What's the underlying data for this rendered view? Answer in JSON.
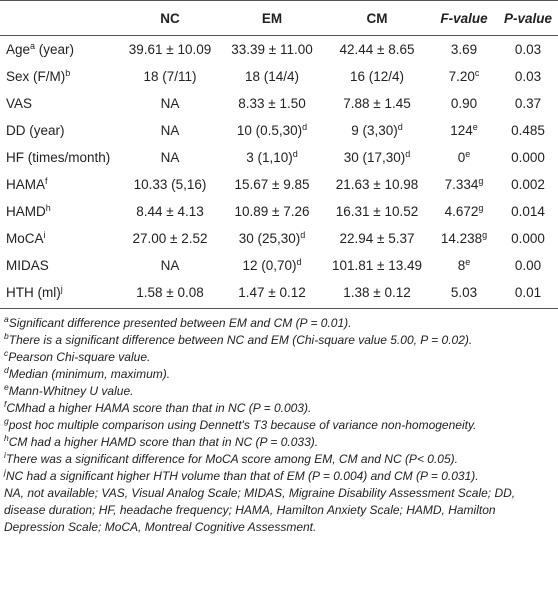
{
  "table": {
    "columns": [
      "",
      "NC",
      "EM",
      "CM",
      "F-value",
      "P-value"
    ],
    "rows": [
      {
        "label": "Age",
        "label_sup": "a",
        "label_suffix": " (year)",
        "cells": [
          {
            "v": "39.61 ± 10.09"
          },
          {
            "v": "33.39 ± 11.00"
          },
          {
            "v": "42.44 ± 8.65"
          },
          {
            "v": "3.69"
          },
          {
            "v": "0.03"
          }
        ]
      },
      {
        "label": "Sex (F/M)",
        "label_sup": "b",
        "label_suffix": "",
        "cells": [
          {
            "v": "18 (7/11)"
          },
          {
            "v": "18 (14/4)"
          },
          {
            "v": "16 (12/4)"
          },
          {
            "v": "7.20",
            "sup": "c"
          },
          {
            "v": "0.03"
          }
        ]
      },
      {
        "label": "VAS",
        "label_sup": "",
        "label_suffix": "",
        "cells": [
          {
            "v": "NA"
          },
          {
            "v": "8.33 ± 1.50"
          },
          {
            "v": "7.88 ± 1.45"
          },
          {
            "v": "0.90"
          },
          {
            "v": "0.37"
          }
        ]
      },
      {
        "label": "DD (year)",
        "label_sup": "",
        "label_suffix": "",
        "cells": [
          {
            "v": "NA"
          },
          {
            "v": "10 (0.5,30)",
            "sup": "d"
          },
          {
            "v": "9 (3,30)",
            "sup": "d"
          },
          {
            "v": "124",
            "sup": "e"
          },
          {
            "v": "0.485"
          }
        ]
      },
      {
        "label": "HF (times/month)",
        "label_sup": "",
        "label_suffix": "",
        "cells": [
          {
            "v": "NA"
          },
          {
            "v": "3 (1,10)",
            "sup": "d"
          },
          {
            "v": "30 (17,30)",
            "sup": "d"
          },
          {
            "v": "0",
            "sup": "e"
          },
          {
            "v": "0.000"
          }
        ]
      },
      {
        "label": "HAMA",
        "label_sup": "f",
        "label_suffix": "",
        "cells": [
          {
            "v": "10.33 (5,16)"
          },
          {
            "v": "15.67 ± 9.85"
          },
          {
            "v": "21.63 ± 10.98"
          },
          {
            "v": "7.334",
            "sup": "g"
          },
          {
            "v": "0.002"
          }
        ]
      },
      {
        "label": "HAMD",
        "label_sup": "h",
        "label_suffix": "",
        "cells": [
          {
            "v": "8.44 ± 4.13"
          },
          {
            "v": "10.89 ± 7.26"
          },
          {
            "v": "16.31 ± 10.52"
          },
          {
            "v": "4.672",
            "sup": "g"
          },
          {
            "v": "0.014"
          }
        ]
      },
      {
        "label": "MoCA",
        "label_sup": "i",
        "label_suffix": "",
        "cells": [
          {
            "v": "27.00 ± 2.52"
          },
          {
            "v": "30 (25,30)",
            "sup": "d"
          },
          {
            "v": "22.94 ± 5.37"
          },
          {
            "v": "14.238",
            "sup": "g"
          },
          {
            "v": "0.000"
          }
        ]
      },
      {
        "label": "MIDAS",
        "label_sup": "",
        "label_suffix": "",
        "cells": [
          {
            "v": "NA"
          },
          {
            "v": "12 (0,70)",
            "sup": "d"
          },
          {
            "v": "101.81 ± 13.49"
          },
          {
            "v": "8",
            "sup": "e"
          },
          {
            "v": "0.00"
          }
        ]
      },
      {
        "label": "HTH (ml)",
        "label_sup": "j",
        "label_suffix": "",
        "cells": [
          {
            "v": "1.58 ± 0.08"
          },
          {
            "v": "1.47 ± 0.12"
          },
          {
            "v": "1.38 ± 0.12"
          },
          {
            "v": "5.03"
          },
          {
            "v": "0.01"
          }
        ]
      }
    ]
  },
  "notes": [
    {
      "sup": "a",
      "text": "Significant difference presented between EM and CM (P = 0.01)."
    },
    {
      "sup": "b",
      "text": "There is a significant difference between NC and EM (Chi-square value 5.00, P = 0.02)."
    },
    {
      "sup": "c",
      "text": "Pearson Chi-square value."
    },
    {
      "sup": "d",
      "text": "Median (minimum, maximum)."
    },
    {
      "sup": "e",
      "text": "Mann-Whitney U value."
    },
    {
      "sup": "f",
      "text": "CMhad a higher HAMA score than that in NC (P = 0.003)."
    },
    {
      "sup": "g",
      "text": "post hoc multiple comparison using Dennett's T3 because of variance non-homogeneity."
    },
    {
      "sup": "h",
      "text": "CM had a higher HAMD score than that in NC (P = 0.033)."
    },
    {
      "sup": "i",
      "text": "There was a significant difference for MoCA score among EM, CM and NC (P< 0.05)."
    },
    {
      "sup": "j",
      "text": "NC had a significant higher HTH volume than that of EM (P = 0.004) and CM (P = 0.031)."
    }
  ],
  "abbreviations": "NA, not available; VAS, Visual Analog Scale; MIDAS, Migraine Disability Assessment Scale; DD, disease duration; HF, headache frequency; HAMA, Hamilton Anxiety Scale; HAMD, Hamilton Depression Scale; MoCA, Montreal Cognitive Assessment."
}
